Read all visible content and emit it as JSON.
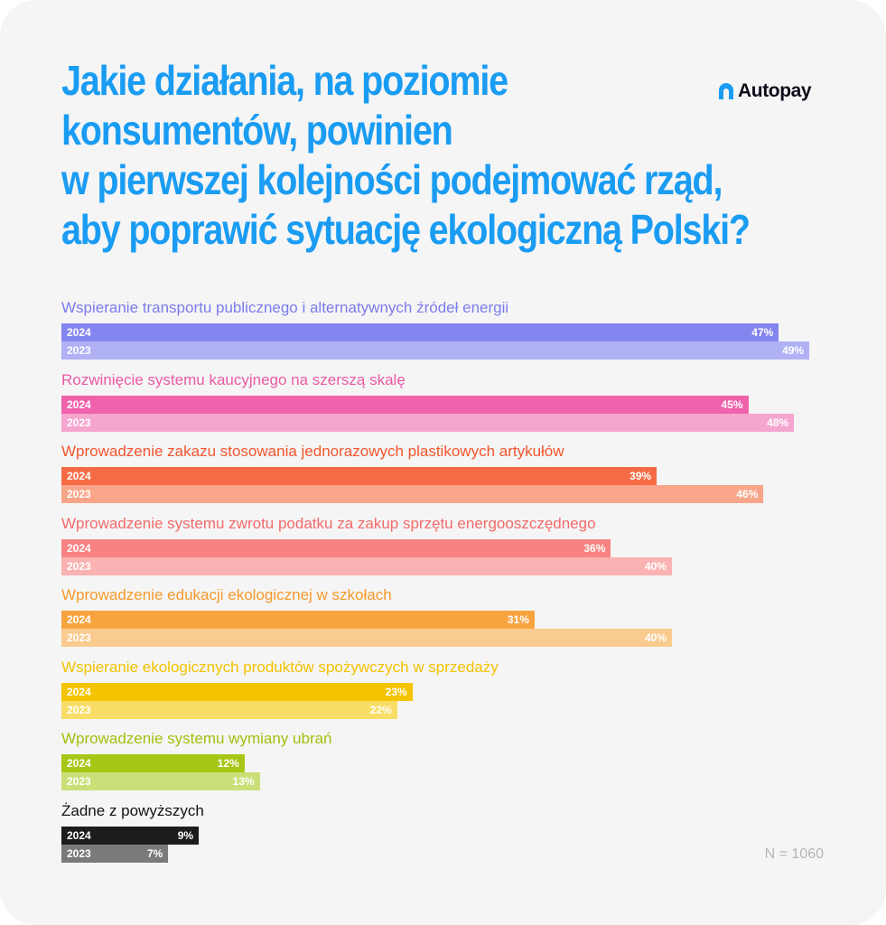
{
  "brand": {
    "name": "Autopay",
    "color": "#0d0d1a"
  },
  "title_lines": [
    "Jakie działania, na poziomie",
    "konsumentów, powinien",
    "w pierwszej kolejności podejmować rząd,",
    "aby poprawić sytuację ekologiczną Polski?"
  ],
  "footnote": "N = 1060",
  "chart_data": {
    "type": "bar",
    "orientation": "horizontal",
    "unit": "%",
    "xlim": [
      0,
      50
    ],
    "series_names": [
      "2024",
      "2023"
    ],
    "categories": [
      {
        "label": "Wspieranie transportu publicznego i alternatywnych źródeł energii",
        "label_color": "#7b7bec",
        "colors": [
          "#8585ef",
          "#b1b1f5"
        ],
        "values": [
          47,
          49
        ],
        "value_labels": [
          "47%",
          "49%"
        ]
      },
      {
        "label": "Rozwinięcie systemu kaucyjnego na szerszą skalę",
        "label_color": "#ec5aa4",
        "colors": [
          "#ef62ac",
          "#f5a6cf"
        ],
        "values": [
          45,
          48
        ],
        "value_labels": [
          "45%",
          "48%"
        ]
      },
      {
        "label": "Wprowadzenie zakazu stosowania jednorazowych plastikowych artykułów",
        "label_color": "#f2552e",
        "colors": [
          "#f56b45",
          "#f9a58a"
        ],
        "values": [
          39,
          46
        ],
        "value_labels": [
          "39%",
          "46%"
        ]
      },
      {
        "label": "Wprowadzenie systemu zwrotu podatku za zakup sprzętu energooszczędnego",
        "label_color": "#f36a6a",
        "colors": [
          "#f88282",
          "#fab2b2"
        ],
        "values": [
          36,
          40
        ],
        "value_labels": [
          "36%",
          "40%"
        ]
      },
      {
        "label": "Wprowadzenie edukacji ekologicznej w szkołach",
        "label_color": "#f59a2a",
        "colors": [
          "#f7a440",
          "#facb8e"
        ],
        "values": [
          31,
          40
        ],
        "value_labels": [
          "31%",
          "40%"
        ]
      },
      {
        "label": "Wspieranie ekologicznych produktów spożywczych w sprzedaży",
        "label_color": "#f2c200",
        "colors": [
          "#f5c400",
          "#f8dd66"
        ],
        "values": [
          23,
          22
        ],
        "value_labels": [
          "23%",
          "22%"
        ]
      },
      {
        "label": "Wprowadzenie systemu wymiany ubrań",
        "label_color": "#9fc10e",
        "colors": [
          "#a7c716",
          "#cadf78"
        ],
        "values": [
          12,
          13
        ],
        "value_labels": [
          "12%",
          "13%"
        ]
      },
      {
        "label": "Żadne z powyższych",
        "label_color": "#141414",
        "colors": [
          "#1c1c1c",
          "#7a7a7a"
        ],
        "values": [
          9,
          7
        ],
        "value_labels": [
          "9%",
          "7%"
        ]
      }
    ]
  }
}
